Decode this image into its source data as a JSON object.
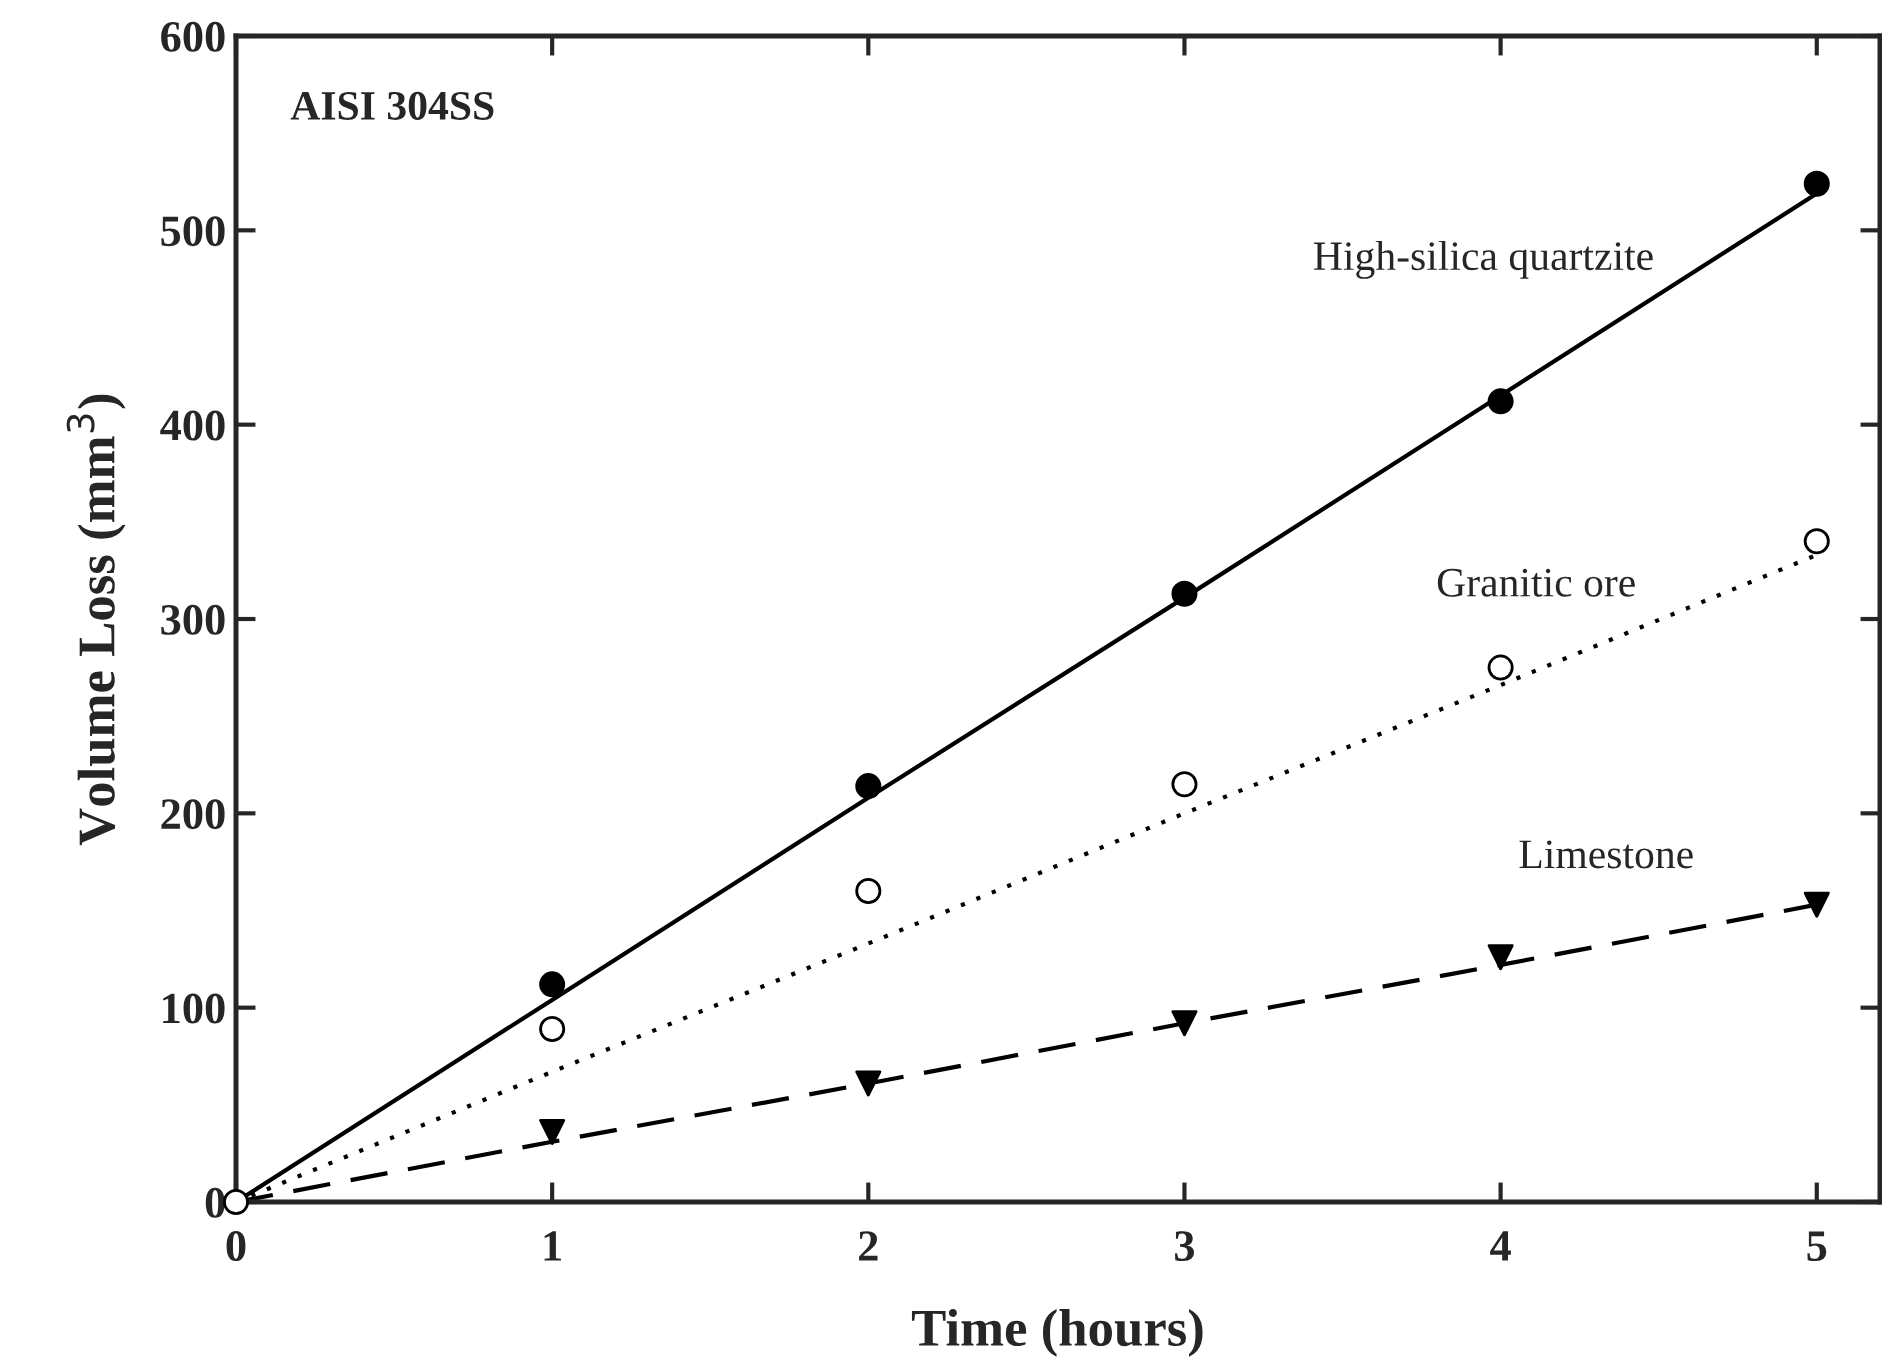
{
  "chart_data": {
    "type": "scatter",
    "xlabel": "Time (hours)",
    "ylabel": "Volume Loss (mm$^{3}$)",
    "x": [
      0,
      1,
      2,
      3,
      4,
      5
    ],
    "series": [
      {
        "color": "#000000",
        "marker": "circle",
        "x": [
          1,
          2,
          3,
          4,
          5
        ],
        "values": [
          112,
          214,
          313,
          412,
          524
        ]
      },
      {
        "color": "#ffffff",
        "marker": "circle",
        "values": [
          0,
          89,
          160,
          215,
          275,
          340
        ]
      },
      {
        "color": "#000000",
        "marker": "triangle",
        "x": [
          1,
          2,
          3,
          4,
          5
        ],
        "values": [
          36,
          61,
          92,
          126,
          153
        ]
      },
      {
        "type": "line",
        "color": "#000000",
        "line_style": "solid",
        "values": [
          0,
          104,
          208,
          311,
          415,
          519
        ]
      },
      {
        "type": "line",
        "color": "#000000",
        "line_style": "dotted",
        "values": [
          0,
          67,
          133,
          200,
          266,
          333
        ]
      },
      {
        "type": "line",
        "color": "#000000",
        "line_style": "dashed",
        "values": [
          0,
          31,
          61,
          92,
          122,
          153
        ]
      }
    ],
    "annotations": [
      "AISI 304SS",
      "High-silica quartzite",
      "Granitic ore",
      "Limestone"
    ],
    "xlim": [
      0,
      5.2
    ],
    "ylim": [
      0,
      600
    ],
    "xticks": [
      0,
      1,
      2,
      3,
      4,
      5
    ],
    "yticks": [
      0,
      100,
      200,
      300,
      400,
      500,
      600
    ],
    "grid": false,
    "legend": false
  }
}
